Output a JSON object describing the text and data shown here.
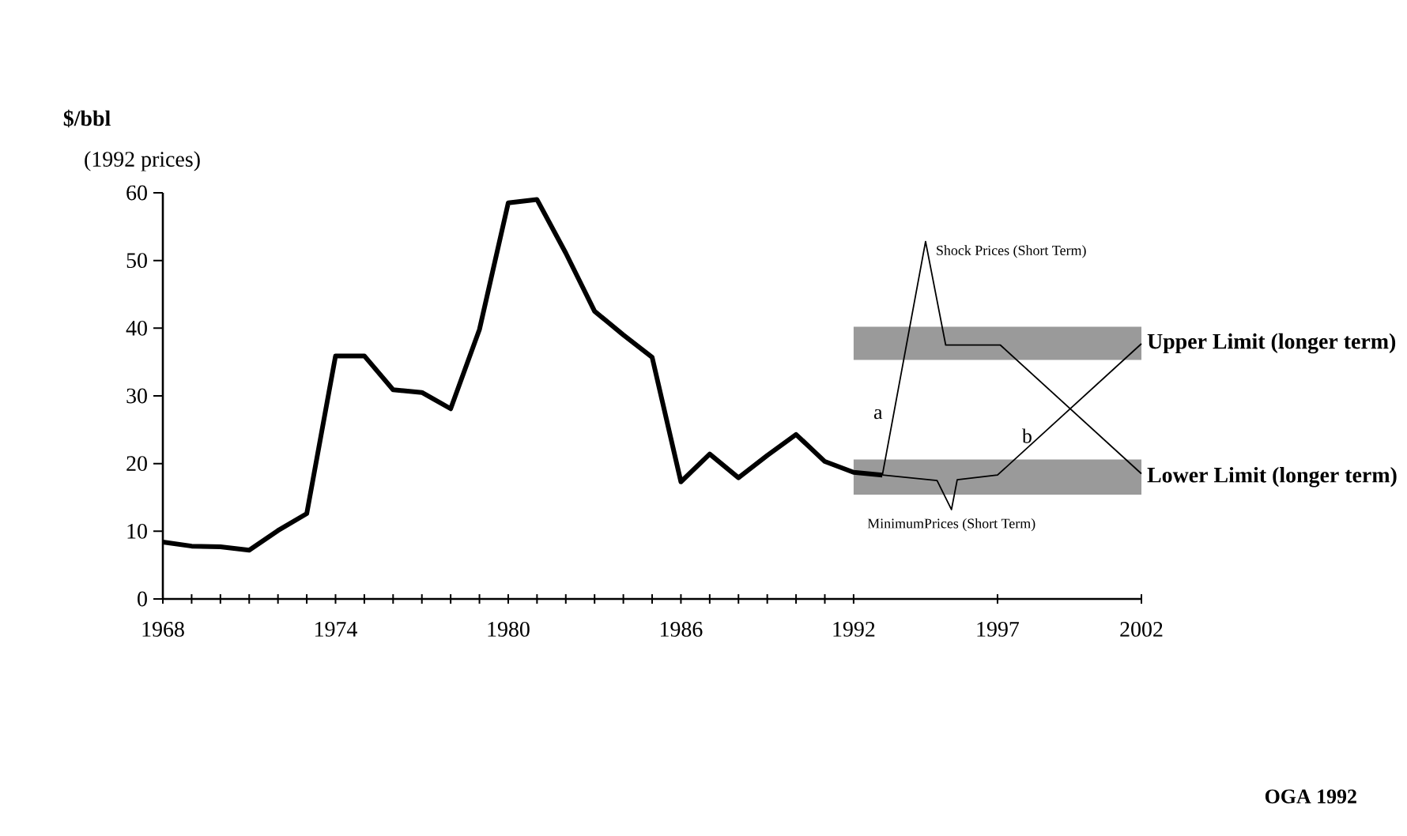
{
  "chart_data": {
    "type": "line",
    "ylabel": "$/bbl",
    "subtitle": "(1992 prices)",
    "xlim": [
      1968,
      2002
    ],
    "ylim": [
      0,
      60
    ],
    "xticks": [
      1968,
      {
        "value": 1969,
        "label": null
      },
      {
        "value": 1970,
        "label": null
      },
      {
        "value": 1971,
        "label": null
      },
      {
        "value": 1972,
        "label": null
      },
      {
        "value": 1973,
        "label": null
      },
      1974,
      {
        "value": 1975,
        "label": null
      },
      {
        "value": 1976,
        "label": null
      },
      {
        "value": 1977,
        "label": null
      },
      {
        "value": 1978,
        "label": null
      },
      {
        "value": 1979,
        "label": null
      },
      1980,
      {
        "value": 1981,
        "label": null
      },
      {
        "value": 1982,
        "label": null
      },
      {
        "value": 1983,
        "label": null
      },
      {
        "value": 1984,
        "label": null
      },
      {
        "value": 1985,
        "label": null
      },
      1986,
      {
        "value": 1987,
        "label": null
      },
      {
        "value": 1988,
        "label": null
      },
      {
        "value": 1989,
        "label": null
      },
      {
        "value": 1990,
        "label": null
      },
      {
        "value": 1991,
        "label": null
      },
      1992,
      1997,
      2002
    ],
    "yticks": [
      0,
      10,
      20,
      30,
      40,
      50,
      60
    ],
    "series": [
      {
        "color": "#000000",
        "x": [
          1968,
          1969,
          1970,
          1971,
          1972,
          1973,
          1974,
          1975,
          1976,
          1977,
          1978,
          1979,
          1980,
          1981,
          1982,
          1983,
          1984,
          1985,
          1986,
          1987,
          1988,
          1989,
          1990,
          1991,
          1992,
          1993
        ],
        "values": [
          8.4,
          7.8,
          7.7,
          7.2,
          10.1,
          12.6,
          35.9,
          35.9,
          30.9,
          30.5,
          28.1,
          39.8,
          58.5,
          59.0,
          51.1,
          42.5,
          39.0,
          35.7,
          17.3,
          21.4,
          17.9,
          21.2,
          24.3,
          20.3,
          18.7,
          18.3
        ]
      },
      {
        "name": "Shock Prices (Short Term)",
        "color": "#000000",
        "x": [
          1993,
          1994.5,
          1995.2,
          1997.1,
          2002
        ],
        "values": [
          18.3,
          52.8,
          37.5,
          37.5,
          18.5
        ]
      },
      {
        "name": "MinimumPrices (Short Term)",
        "color": "#000000",
        "x": [
          1993,
          1994.9,
          1995.4,
          1995.6,
          1997,
          2002
        ],
        "values": [
          18.3,
          17.5,
          13.2,
          17.6,
          18.3,
          37.7
        ]
      }
    ],
    "bands": [
      {
        "axis": "y",
        "from": 35.3,
        "to": 40.2,
        "label": "Upper Limit (longer term)",
        "color": "#9a9a9a"
      },
      {
        "axis": "y",
        "from": 15.4,
        "to": 20.6,
        "label": "Lower Limit (longer term)",
        "color": "#9a9a9a"
      }
    ],
    "annotations": [
      {
        "text": "a",
        "x": 1993.2,
        "y": 27.3
      },
      {
        "text": "b",
        "x": 1998.4,
        "y": 24.1
      },
      "OGA 1992"
    ]
  }
}
